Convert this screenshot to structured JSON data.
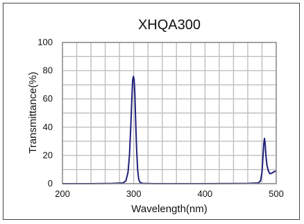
{
  "chart_data": {
    "type": "line",
    "title": "XHQA300",
    "xlabel": "Wavelength(nm)",
    "ylabel": "Transmittance(%)",
    "xlim": [
      200,
      500
    ],
    "ylim": [
      0,
      100
    ],
    "xticks": [
      200,
      300,
      400,
      500
    ],
    "yticks": [
      0,
      20,
      40,
      60,
      80,
      100
    ],
    "grid": true,
    "colors": {
      "line": "#1f1f7a",
      "grid": "#bfbfbf",
      "plot_border": "#888888"
    },
    "series": [
      {
        "values_xy": [
          [
            200,
            0
          ],
          [
            240,
            0
          ],
          [
            270,
            0.2
          ],
          [
            285,
            0.5
          ],
          [
            289,
            2
          ],
          [
            292,
            8
          ],
          [
            294,
            20
          ],
          [
            296,
            42
          ],
          [
            297.5,
            62
          ],
          [
            298.5,
            73
          ],
          [
            299.5,
            76
          ],
          [
            300.5,
            74
          ],
          [
            301.5,
            65
          ],
          [
            302.5,
            48
          ],
          [
            304,
            25
          ],
          [
            305.5,
            10
          ],
          [
            307,
            3
          ],
          [
            309,
            0.8
          ],
          [
            313,
            0.2
          ],
          [
            330,
            0
          ],
          [
            400,
            0
          ],
          [
            460,
            0.2
          ],
          [
            475,
            0.5
          ],
          [
            478,
            2
          ],
          [
            480,
            8
          ],
          [
            481.5,
            20
          ],
          [
            482.5,
            28
          ],
          [
            483.5,
            32
          ],
          [
            484.5,
            28
          ],
          [
            485.5,
            20
          ],
          [
            487,
            13
          ],
          [
            489,
            9
          ],
          [
            491,
            7
          ],
          [
            494,
            7.5
          ],
          [
            497,
            8.5
          ],
          [
            500,
            9
          ]
        ]
      }
    ]
  }
}
